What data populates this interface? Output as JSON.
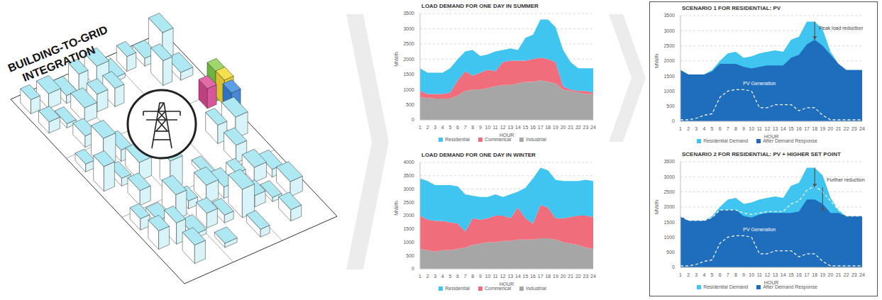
{
  "illustration": {
    "title": "BUILDING-TO-GRID INTEGRATION"
  },
  "chart_data": [
    {
      "type": "area",
      "title": "LOAD DEMAND FOR ONE DAY IN SUMMER",
      "x_label": "HOUR",
      "y_label": "MW/h",
      "x": [
        1,
        2,
        3,
        4,
        5,
        6,
        7,
        8,
        9,
        10,
        11,
        12,
        13,
        14,
        15,
        16,
        17,
        18,
        19,
        20,
        21,
        22,
        23,
        24
      ],
      "ylim": [
        0,
        3500
      ],
      "yticks": [
        0,
        500,
        1000,
        1500,
        2000,
        2500,
        3000,
        3500
      ],
      "grid": true,
      "stacked": true,
      "legend": "bottom",
      "series": [
        {
          "name": "Residential",
          "type": "area",
          "color": "#40c4f0",
          "values": [
            750,
            700,
            700,
            700,
            800,
            700,
            650,
            850,
            550,
            500,
            650,
            400,
            400,
            350,
            750,
            800,
            1250,
            1300,
            1150,
            1200,
            900,
            750,
            750,
            800
          ]
        },
        {
          "name": "Commerical",
          "type": "area",
          "color": "#f06e7c",
          "values": [
            200,
            130,
            150,
            150,
            200,
            500,
            650,
            450,
            550,
            600,
            500,
            750,
            800,
            750,
            700,
            750,
            750,
            750,
            700,
            100,
            50,
            50,
            100,
            50
          ]
        },
        {
          "name": "Industrial",
          "type": "area",
          "color": "#a6a6a6",
          "values": [
            750,
            720,
            700,
            700,
            700,
            800,
            950,
            1000,
            1000,
            1050,
            1100,
            1150,
            1150,
            1200,
            1250,
            1250,
            1300,
            1250,
            1200,
            1000,
            950,
            900,
            850,
            850
          ]
        }
      ]
    },
    {
      "type": "area",
      "title": "LOAD DEMAND FOR ONE DAY IN WINTER",
      "x_label": "HOUR",
      "y_label": "MW/h",
      "x": [
        1,
        2,
        3,
        4,
        5,
        6,
        7,
        8,
        9,
        10,
        11,
        12,
        13,
        14,
        15,
        16,
        17,
        18,
        19,
        20,
        21,
        22,
        23,
        24
      ],
      "ylim": [
        0,
        4000
      ],
      "yticks": [
        0,
        500,
        1000,
        1500,
        2000,
        2500,
        3000,
        3500,
        4000
      ],
      "grid": true,
      "stacked": true,
      "legend": "bottom",
      "series": [
        {
          "name": "Residential",
          "type": "area",
          "color": "#40c4f0",
          "values": [
            1400,
            1450,
            1350,
            1350,
            1400,
            1400,
            1400,
            850,
            850,
            800,
            800,
            700,
            900,
            600,
            1150,
            1700,
            1400,
            1400,
            1450,
            1400,
            1350,
            1300,
            1350,
            1350
          ]
        },
        {
          "name": "Commerical",
          "type": "area",
          "color": "#f06e7c",
          "values": [
            1250,
            1150,
            1150,
            1100,
            1050,
            950,
            600,
            1000,
            900,
            900,
            1000,
            950,
            850,
            1200,
            800,
            600,
            1250,
            1150,
            800,
            900,
            1000,
            1100,
            1200,
            1200
          ]
        },
        {
          "name": "Industrial",
          "type": "area",
          "color": "#a6a6a6",
          "values": [
            750,
            700,
            650,
            700,
            700,
            750,
            800,
            900,
            950,
            1000,
            1000,
            1050,
            1050,
            1100,
            1100,
            1100,
            1150,
            1150,
            1100,
            1000,
            950,
            900,
            800,
            750
          ]
        }
      ]
    },
    {
      "type": "area",
      "title": "SCENARIO 1 FOR RESIDENTIAL: PV",
      "x_label": "HOUR",
      "y_label": "MW/h",
      "x": [
        1,
        2,
        3,
        4,
        5,
        6,
        7,
        8,
        9,
        10,
        11,
        12,
        13,
        14,
        15,
        16,
        17,
        18,
        19,
        20,
        21,
        22,
        23,
        24
      ],
      "ylim": [
        0,
        3500
      ],
      "yticks": [
        0,
        500,
        1000,
        1500,
        2000,
        2500,
        3000,
        3500
      ],
      "grid": true,
      "stacked": false,
      "legend": "bottom",
      "series": [
        {
          "name": "Residential Demand",
          "type": "area",
          "color": "#40c4f0",
          "values": [
            1700,
            1550,
            1550,
            1550,
            1700,
            2000,
            2250,
            2300,
            2100,
            2150,
            2250,
            2300,
            2350,
            2300,
            2700,
            2800,
            3300,
            3300,
            3050,
            2300,
            1900,
            1700,
            1700,
            1700
          ]
        },
        {
          "name": "After Demand Response",
          "type": "area",
          "color": "#1f6dbd",
          "values": [
            1700,
            1550,
            1550,
            1550,
            1650,
            1900,
            1900,
            1900,
            1800,
            1750,
            1800,
            1850,
            1850,
            1850,
            2100,
            2200,
            2550,
            2700,
            2500,
            2200,
            1900,
            1700,
            1700,
            1700
          ]
        },
        {
          "type": "line",
          "line_style": "dashed",
          "color": "#ffffff",
          "values": [
            50,
            50,
            100,
            200,
            250,
            800,
            1000,
            1050,
            1050,
            1000,
            450,
            450,
            550,
            550,
            550,
            350,
            450,
            450,
            200,
            50,
            50,
            50,
            50,
            50
          ]
        }
      ],
      "annotations": [
        {
          "text": "Peak load reduction",
          "x": 18,
          "y": 3100,
          "color": "#404040"
        },
        {
          "text": "PV Generation",
          "x": 11,
          "y": 1250,
          "color": "#ffffff"
        }
      ],
      "arrows": [
        {
          "x": 18,
          "from": 3300,
          "to": 2700
        }
      ]
    },
    {
      "type": "area",
      "title": "SCENARIO 2 FOR RESIDENTIAL: PV + HIGHER SET POINT",
      "x_label": "HOUR",
      "y_label": "MW/h",
      "x": [
        1,
        2,
        3,
        4,
        5,
        6,
        7,
        8,
        9,
        10,
        11,
        12,
        13,
        14,
        15,
        16,
        17,
        18,
        19,
        20,
        21,
        22,
        23,
        24
      ],
      "ylim": [
        0,
        3500
      ],
      "yticks": [
        0,
        500,
        1000,
        1500,
        2000,
        2500,
        3000,
        3500
      ],
      "grid": true,
      "stacked": false,
      "legend": "bottom",
      "series": [
        {
          "name": "Residential Demand",
          "type": "area",
          "color": "#40c4f0",
          "values": [
            1700,
            1550,
            1550,
            1550,
            1700,
            2000,
            2250,
            2300,
            2100,
            2150,
            2250,
            2300,
            2350,
            2300,
            2700,
            2800,
            3300,
            3300,
            3050,
            2300,
            1900,
            1700,
            1700,
            1700
          ]
        },
        {
          "name": "After Demand Response",
          "type": "area",
          "color": "#1f6dbd",
          "values": [
            1700,
            1550,
            1550,
            1550,
            1650,
            1900,
            1900,
            1900,
            1700,
            1650,
            1750,
            1800,
            1800,
            1800,
            1800,
            1850,
            2250,
            2250,
            2100,
            1800,
            1800,
            1700,
            1700,
            1700
          ]
        },
        {
          "type": "line",
          "line_style": "dashed",
          "color": "#ffffff",
          "values": [
            1700,
            1550,
            1550,
            1550,
            1650,
            1900,
            1900,
            1900,
            1800,
            1750,
            1800,
            1850,
            1850,
            1850,
            2100,
            2200,
            2550,
            2700,
            2500,
            2200,
            1900,
            1700,
            1700,
            1700
          ]
        },
        {
          "type": "line",
          "line_style": "dashed",
          "color": "#ffffff",
          "values": [
            50,
            50,
            100,
            200,
            250,
            800,
            1000,
            1050,
            1050,
            1000,
            450,
            450,
            550,
            550,
            550,
            350,
            450,
            450,
            200,
            50,
            50,
            50,
            50,
            50
          ]
        }
      ],
      "annotations": [
        {
          "text": "Further reduction",
          "x": 19,
          "y": 2900,
          "color": "#404040"
        },
        {
          "text": "PV Generation",
          "x": 11,
          "y": 1250,
          "color": "#ffffff"
        }
      ],
      "arrows": [
        {
          "x": 18,
          "from": 3300,
          "to": 2650
        },
        {
          "x": 19,
          "from": 2650,
          "to": 1850
        }
      ]
    }
  ]
}
